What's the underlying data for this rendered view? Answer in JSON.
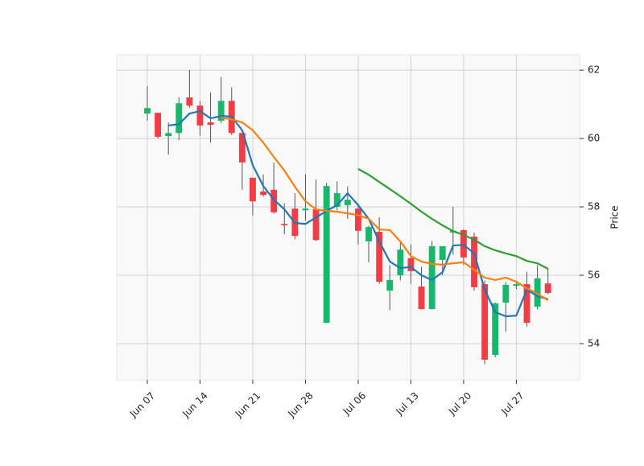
{
  "chart_data": {
    "type": "candlestick",
    "x": [
      "Jun 07",
      null,
      null,
      null,
      null,
      "Jun 14",
      null,
      null,
      null,
      null,
      "Jun 21",
      null,
      null,
      null,
      null,
      "Jun 28",
      null,
      null,
      null,
      null,
      "Jul 06",
      null,
      null,
      null,
      null,
      "Jul 13",
      null,
      null,
      null,
      null,
      "Jul 20",
      null,
      null,
      null,
      null,
      "Jul 27",
      null,
      null,
      null
    ],
    "open": [
      60.73,
      60.75,
      60.07,
      60.16,
      61.2,
      60.96,
      60.47,
      60.52,
      61.1,
      60.16,
      58.85,
      58.45,
      58.5,
      57.5,
      57.95,
      57.9,
      57.93,
      54.61,
      58.0,
      58.05,
      57.95,
      56.99,
      57.27,
      55.55,
      56.0,
      56.5,
      55.67,
      55.01,
      56.45,
      57.25,
      57.32,
      57.13,
      55.74,
      53.67,
      55.2,
      55.69,
      55.74,
      55.08,
      55.76
    ],
    "high": [
      61.53,
      60.75,
      60.47,
      61.2,
      62.0,
      61.1,
      61.35,
      61.8,
      61.5,
      60.16,
      58.85,
      58.95,
      59.3,
      58.1,
      58.4,
      58.95,
      58.8,
      58.7,
      58.75,
      58.6,
      58.1,
      57.45,
      57.7,
      56.3,
      57.0,
      56.9,
      56.25,
      57.0,
      56.85,
      58.0,
      57.35,
      57.25,
      55.85,
      55.2,
      55.8,
      55.8,
      56.1,
      56.3,
      56.2
    ],
    "low": [
      60.52,
      60.0,
      59.53,
      59.95,
      60.9,
      60.08,
      59.88,
      60.45,
      60.1,
      58.5,
      57.75,
      58.3,
      57.8,
      57.2,
      57.05,
      57.6,
      57.0,
      54.61,
      57.9,
      57.65,
      56.9,
      56.38,
      55.75,
      54.98,
      55.85,
      55.75,
      55.0,
      55.0,
      56.0,
      56.6,
      56.3,
      55.55,
      53.4,
      53.6,
      54.35,
      55.6,
      54.5,
      55.0,
      55.45
    ],
    "close": [
      60.89,
      60.05,
      60.16,
      61.03,
      60.96,
      60.38,
      60.4,
      61.1,
      60.16,
      59.3,
      58.16,
      58.35,
      57.84,
      57.46,
      57.15,
      57.95,
      57.03,
      58.61,
      58.4,
      58.21,
      57.3,
      57.41,
      55.81,
      55.86,
      56.75,
      56.12,
      55.01,
      56.85,
      56.85,
      57.3,
      56.52,
      55.65,
      53.53,
      55.18,
      55.72,
      55.74,
      54.61,
      55.91,
      55.48
    ],
    "up_color": "#17b86b",
    "down_color": "#f43c44",
    "wick_color": "#555555",
    "series": [
      {
        "color": "#1f77b4",
        "values": [
          null,
          null,
          60.38,
          60.42,
          60.73,
          60.8,
          60.59,
          60.66,
          60.64,
          60.24,
          59.22,
          58.61,
          58.21,
          57.93,
          57.53,
          57.5,
          57.69,
          57.88,
          58.05,
          58.4,
          58.05,
          57.65,
          56.99,
          56.4,
          56.21,
          56.24,
          56.0,
          55.86,
          56.09,
          56.87,
          56.89,
          56.64,
          55.58,
          54.92,
          54.8,
          54.82,
          55.58,
          55.39,
          55.3
        ]
      },
      {
        "color": "#ff7f0e",
        "values": [
          null,
          null,
          null,
          null,
          null,
          null,
          null,
          60.61,
          60.56,
          60.47,
          60.24,
          59.88,
          59.46,
          59.06,
          58.59,
          58.16,
          57.93,
          57.88,
          57.86,
          57.81,
          57.76,
          57.65,
          57.34,
          57.32,
          56.99,
          56.56,
          56.4,
          56.33,
          56.31,
          56.35,
          56.38,
          56.16,
          55.93,
          55.86,
          55.93,
          55.81,
          55.62,
          55.46,
          55.27
        ]
      },
      {
        "color": "#2ca02c",
        "values": [
          null,
          null,
          null,
          null,
          null,
          null,
          null,
          null,
          null,
          null,
          null,
          null,
          null,
          null,
          null,
          null,
          null,
          null,
          null,
          null,
          59.11,
          58.94,
          58.73,
          58.52,
          58.31,
          58.09,
          57.86,
          57.65,
          57.46,
          57.29,
          57.18,
          57.04,
          56.85,
          56.73,
          56.64,
          56.56,
          56.42,
          56.35,
          56.19
        ]
      }
    ],
    "xlim": [
      -2.9,
      41
    ],
    "ylim": [
      52.94,
      62.45
    ],
    "yticks": [
      54,
      56,
      58,
      60,
      62
    ],
    "ylabel": "Price",
    "grid": true
  }
}
